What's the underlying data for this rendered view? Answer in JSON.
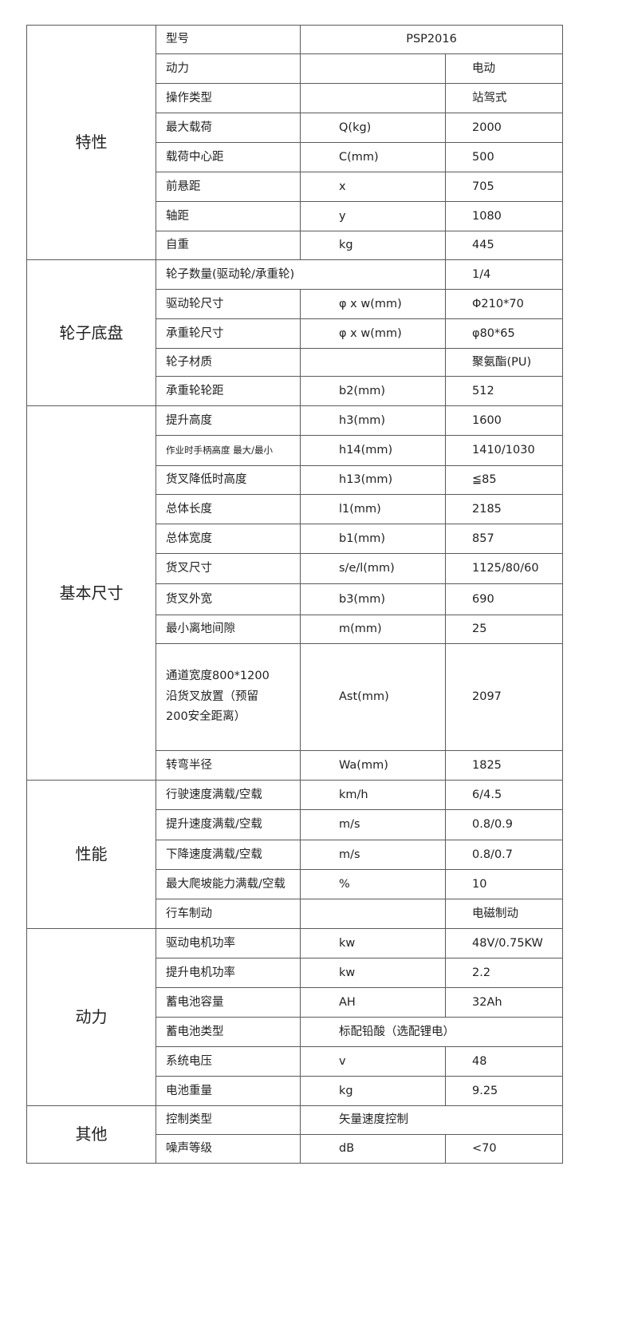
{
  "sections": [
    {
      "label": "特性",
      "rows": [
        {
          "name": "型号",
          "value": "PSP2016",
          "layout": "value-merged-center"
        },
        {
          "name": "动力",
          "unit": "",
          "value": "电动"
        },
        {
          "name": "操作类型",
          "unit": "",
          "value": "站驾式"
        },
        {
          "name": "最大载荷",
          "unit": "Q(kg)",
          "value": "2000"
        },
        {
          "name": "载荷中心距",
          "unit": "C(mm)",
          "value": "500"
        },
        {
          "name": "前悬距",
          "unit": "x",
          "value": "705"
        },
        {
          "name": "轴距",
          "unit": "y",
          "value": "1080"
        },
        {
          "name": "自重",
          "unit": "kg",
          "value": "445"
        }
      ]
    },
    {
      "label": "轮子底盘",
      "rows": [
        {
          "name": "轮子数量(驱动轮/承重轮)",
          "value": "1/4",
          "layout": "name-merged"
        },
        {
          "name": "驱动轮尺寸",
          "unit": "φ x w(mm)",
          "value": "Φ210*70"
        },
        {
          "name": "承重轮尺寸",
          "unit": "φ x w(mm)",
          "value": "φ80*65"
        },
        {
          "name": "轮子材质",
          "unit": "",
          "value": "聚氨酯(PU)"
        },
        {
          "name": "承重轮轮距",
          "unit": "b2(mm)",
          "value": "512"
        }
      ]
    },
    {
      "label": "基本尺寸",
      "rows": [
        {
          "name": "提升高度",
          "unit": "h3(mm)",
          "value": "1600"
        },
        {
          "name": "作业时手柄高度  最大/最小",
          "unit": "h14(mm)",
          "value": "1410/1030",
          "small": true
        },
        {
          "name": "货叉降低时高度",
          "unit": "h13(mm)",
          "value": "≦85"
        },
        {
          "name": "总体长度",
          "unit": "l1(mm)",
          "value": "2185"
        },
        {
          "name": "总体宽度",
          "unit": "b1(mm)",
          "value": "857"
        },
        {
          "name": "货叉尺寸",
          "unit": "s/e/l(mm)",
          "value": "1125/80/60"
        },
        {
          "name": "货叉外宽",
          "unit": "b3(mm)",
          "value": "690"
        },
        {
          "name": "最小离地间隙",
          "unit": "m(mm)",
          "value": "25"
        },
        {
          "name": "通道宽度800*1200\n沿货叉放置（预留\n200安全距离）",
          "unit": "Ast(mm)",
          "value": "2097",
          "tall": true
        },
        {
          "name": "转弯半径",
          "unit": "Wa(mm)",
          "value": "1825"
        }
      ]
    },
    {
      "label": "性能",
      "rows": [
        {
          "name": "行驶速度满载/空载",
          "unit": "km/h",
          "value": "6/4.5"
        },
        {
          "name": "提升速度满载/空载",
          "unit": "m/s",
          "value": "0.8/0.9"
        },
        {
          "name": "下降速度满载/空载",
          "unit": "m/s",
          "value": "0.8/0.7"
        },
        {
          "name": "最大爬坡能力满载/空载",
          "unit": "%",
          "value": "10"
        },
        {
          "name": "行车制动",
          "unit": "",
          "value": "电磁制动"
        }
      ]
    },
    {
      "label": "动力",
      "rows": [
        {
          "name": "驱动电机功率",
          "unit": "kw",
          "value": "48V/0.75KW"
        },
        {
          "name": "提升电机功率",
          "unit": "kw",
          "value": "2.2"
        },
        {
          "name": "蓄电池容量",
          "unit": "AH",
          "value": "32Ah"
        },
        {
          "name": "蓄电池类型",
          "value": "标配铅酸（选配锂电）",
          "layout": "value-merged"
        },
        {
          "name": "系统电压",
          "unit": "v",
          "value": "48"
        },
        {
          "name": "电池重量",
          "unit": "kg",
          "value": "9.25"
        }
      ]
    },
    {
      "label": "其他",
      "rows": [
        {
          "name": "控制类型",
          "value": "矢量速度控制",
          "layout": "value-merged"
        },
        {
          "name": "噪声等级",
          "unit": "dB",
          "value": "<70"
        }
      ]
    }
  ]
}
